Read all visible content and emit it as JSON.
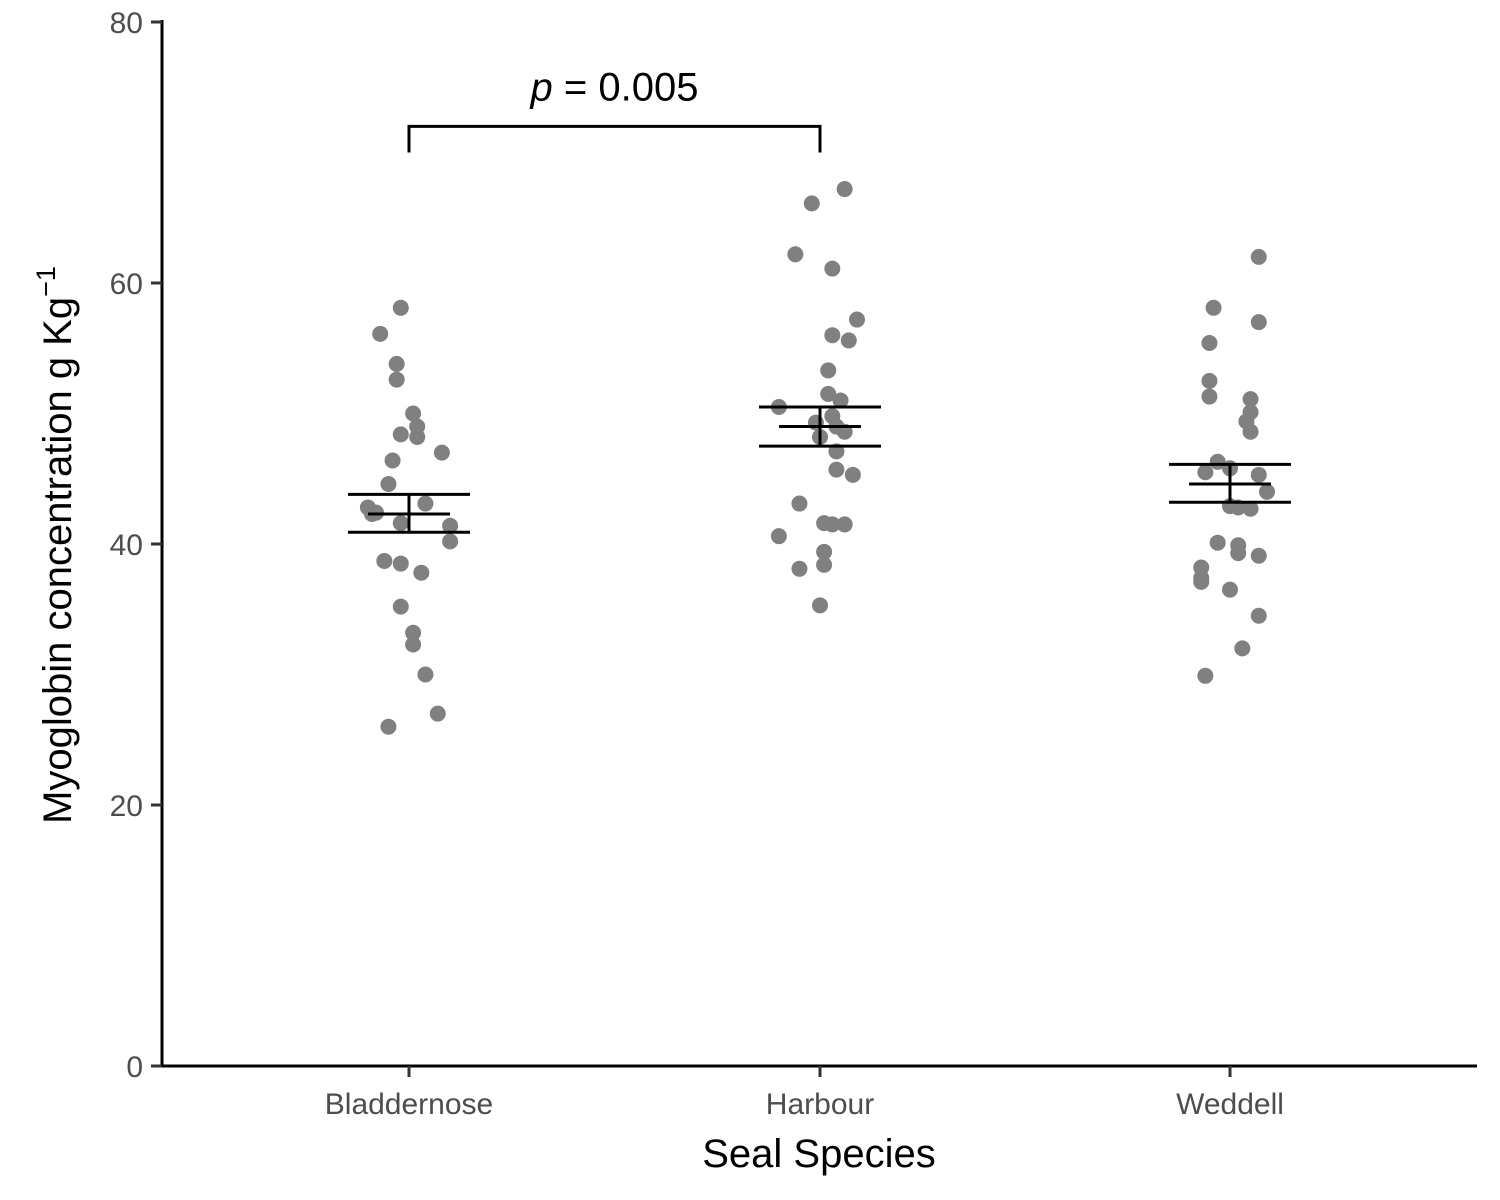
{
  "chart_data": {
    "type": "scatter",
    "xlabel": "Seal Species",
    "ylabel": {
      "main": "Myoglobin concentration g Kg",
      "superscript": "−1"
    },
    "ylim": [
      0,
      80
    ],
    "y_ticks": [
      "0",
      "20",
      "40",
      "60",
      "80"
    ],
    "categories": [
      "Bladdernose",
      "Harbour",
      "Weddell"
    ],
    "point_color": "#808080",
    "grid": false,
    "legend": "none",
    "groups": [
      {
        "name": "Bladdernose",
        "mean": 42.3,
        "se_low": 40.9,
        "se_high": 43.8,
        "points": [
          {
            "j": -0.02,
            "y": 58.1
          },
          {
            "j": -0.07,
            "y": 56.1
          },
          {
            "j": -0.03,
            "y": 53.8
          },
          {
            "j": -0.03,
            "y": 52.6
          },
          {
            "j": 0.01,
            "y": 50.0
          },
          {
            "j": 0.02,
            "y": 49.0
          },
          {
            "j": -0.02,
            "y": 48.4
          },
          {
            "j": 0.02,
            "y": 48.2
          },
          {
            "j": 0.08,
            "y": 47.0
          },
          {
            "j": -0.04,
            "y": 46.4
          },
          {
            "j": -0.05,
            "y": 44.6
          },
          {
            "j": 0.04,
            "y": 43.1
          },
          {
            "j": -0.1,
            "y": 42.8
          },
          {
            "j": -0.08,
            "y": 42.4
          },
          {
            "j": -0.09,
            "y": 42.3
          },
          {
            "j": -0.02,
            "y": 41.6
          },
          {
            "j": 0.1,
            "y": 41.4
          },
          {
            "j": 0.1,
            "y": 40.2
          },
          {
            "j": -0.06,
            "y": 38.7
          },
          {
            "j": -0.02,
            "y": 38.5
          },
          {
            "j": 0.03,
            "y": 37.8
          },
          {
            "j": -0.02,
            "y": 35.2
          },
          {
            "j": 0.01,
            "y": 33.2
          },
          {
            "j": 0.01,
            "y": 32.3
          },
          {
            "j": 0.04,
            "y": 30.0
          },
          {
            "j": 0.07,
            "y": 27.0
          },
          {
            "j": -0.05,
            "y": 26.0
          }
        ]
      },
      {
        "name": "Harbour",
        "mean": 49.0,
        "se_low": 47.5,
        "se_high": 50.5,
        "points": [
          {
            "j": 0.06,
            "y": 67.2
          },
          {
            "j": -0.02,
            "y": 66.1
          },
          {
            "j": -0.06,
            "y": 62.2
          },
          {
            "j": 0.03,
            "y": 61.1
          },
          {
            "j": 0.09,
            "y": 57.2
          },
          {
            "j": 0.03,
            "y": 56.0
          },
          {
            "j": 0.07,
            "y": 55.6
          },
          {
            "j": 0.02,
            "y": 53.3
          },
          {
            "j": 0.02,
            "y": 51.5
          },
          {
            "j": 0.05,
            "y": 51.0
          },
          {
            "j": -0.1,
            "y": 50.5
          },
          {
            "j": 0.03,
            "y": 49.8
          },
          {
            "j": -0.01,
            "y": 49.3
          },
          {
            "j": 0.04,
            "y": 49.0
          },
          {
            "j": 0.06,
            "y": 48.6
          },
          {
            "j": 0.0,
            "y": 48.2
          },
          {
            "j": 0.04,
            "y": 47.1
          },
          {
            "j": 0.04,
            "y": 45.7
          },
          {
            "j": 0.08,
            "y": 45.3
          },
          {
            "j": -0.05,
            "y": 43.1
          },
          {
            "j": 0.01,
            "y": 41.6
          },
          {
            "j": 0.03,
            "y": 41.5
          },
          {
            "j": 0.06,
            "y": 41.5
          },
          {
            "j": -0.1,
            "y": 40.6
          },
          {
            "j": 0.01,
            "y": 39.4
          },
          {
            "j": 0.01,
            "y": 38.4
          },
          {
            "j": -0.05,
            "y": 38.1
          },
          {
            "j": 0.0,
            "y": 35.3
          }
        ]
      },
      {
        "name": "Weddell",
        "mean": 44.6,
        "se_low": 43.2,
        "se_high": 46.1,
        "points": [
          {
            "j": 0.07,
            "y": 62.0
          },
          {
            "j": -0.04,
            "y": 58.1
          },
          {
            "j": 0.07,
            "y": 57.0
          },
          {
            "j": -0.05,
            "y": 55.4
          },
          {
            "j": -0.05,
            "y": 52.5
          },
          {
            "j": -0.05,
            "y": 51.3
          },
          {
            "j": 0.05,
            "y": 51.1
          },
          {
            "j": 0.05,
            "y": 50.1
          },
          {
            "j": 0.04,
            "y": 49.4
          },
          {
            "j": 0.05,
            "y": 48.6
          },
          {
            "j": -0.03,
            "y": 46.3
          },
          {
            "j": -0.06,
            "y": 45.5
          },
          {
            "j": 0.0,
            "y": 45.8
          },
          {
            "j": 0.07,
            "y": 45.3
          },
          {
            "j": 0.09,
            "y": 44.0
          },
          {
            "j": 0.0,
            "y": 42.9
          },
          {
            "j": 0.02,
            "y": 42.8
          },
          {
            "j": 0.05,
            "y": 42.7
          },
          {
            "j": -0.03,
            "y": 40.1
          },
          {
            "j": 0.02,
            "y": 39.9
          },
          {
            "j": 0.02,
            "y": 39.3
          },
          {
            "j": 0.07,
            "y": 39.1
          },
          {
            "j": -0.07,
            "y": 38.2
          },
          {
            "j": -0.07,
            "y": 37.4
          },
          {
            "j": -0.07,
            "y": 37.1
          },
          {
            "j": 0.0,
            "y": 36.5
          },
          {
            "j": 0.07,
            "y": 34.5
          },
          {
            "j": 0.03,
            "y": 32.0
          },
          {
            "j": -0.06,
            "y": 29.9
          }
        ]
      }
    ],
    "annotation": {
      "p_label": "p",
      "rest": " = 0.005",
      "from": "Bladdernose",
      "to": "Harbour",
      "bracket_y": 72,
      "bracket_foot_y": 70
    }
  }
}
